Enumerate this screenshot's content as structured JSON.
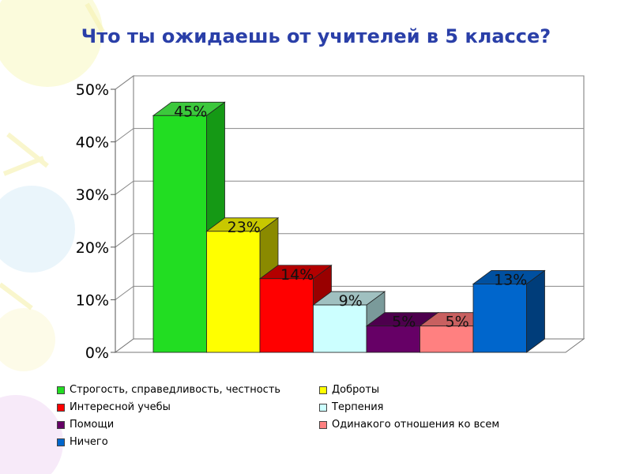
{
  "title": "Что ты ожидаешь от учителей в 5 классе?",
  "chart_data": {
    "type": "bar",
    "three_d": true,
    "categories": [
      "Строгость, справедливость, честность",
      "Доброты",
      "Интересной учебы",
      "Терпения",
      "Помощи",
      "Одинакого отношения ко всем",
      "Ничего"
    ],
    "values": [
      45,
      23,
      14,
      9,
      5,
      5,
      13
    ],
    "value_labels": [
      "45%",
      "23%",
      "14%",
      "9%",
      "5%",
      "5%",
      "13%"
    ],
    "colors": [
      "#22dd22",
      "#ffff00",
      "#ff0000",
      "#ccffff",
      "#660066",
      "#ff8080",
      "#0066cc"
    ],
    "side_colors": [
      "#159915",
      "#8a8a00",
      "#990000",
      "#7a9a9a",
      "#330033",
      "#8a4848",
      "#003d7a"
    ],
    "top_colors": [
      "#3cc83c",
      "#c8c800",
      "#b30000",
      "#a0c0c0",
      "#4d004d",
      "#c86060",
      "#0050a0"
    ],
    "ylim": [
      0,
      50
    ],
    "yticks": [
      0,
      10,
      20,
      30,
      40,
      50
    ],
    "ytick_labels": [
      "0%",
      "10%",
      "20%",
      "30%",
      "40%",
      "50%"
    ],
    "grid": true,
    "legend_position": "bottom"
  }
}
